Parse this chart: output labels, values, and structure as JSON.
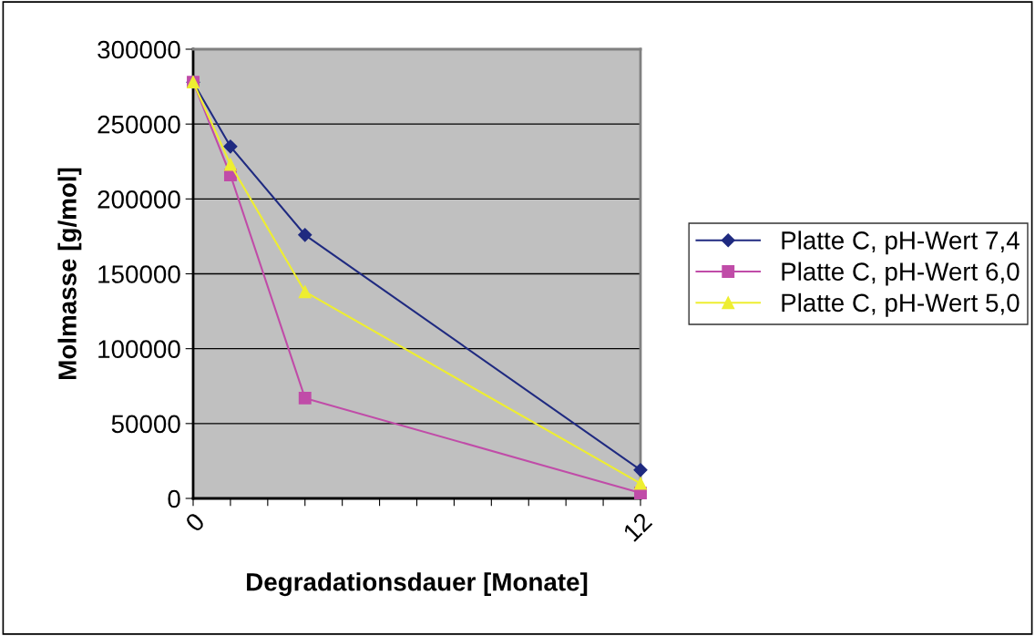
{
  "chart_data": {
    "type": "line",
    "xlabel": "Degradationsdauer [Monate]",
    "ylabel": "Molmasse [g/mol]",
    "x": [
      0,
      1,
      3,
      12
    ],
    "series": [
      {
        "name": "Platte C, pH-Wert 7,4",
        "color": "#1f2a80",
        "marker": "diamond",
        "values": [
          278000,
          235000,
          176000,
          19000
        ]
      },
      {
        "name": "Platte C, pH-Wert 6,0",
        "color": "#c04ca8",
        "marker": "square",
        "values": [
          278000,
          216000,
          67000,
          3600
        ]
      },
      {
        "name": "Platte C, pH-Wert 5,0",
        "color": "#eeee30",
        "marker": "triangle",
        "values": [
          278000,
          223000,
          138000,
          10000
        ]
      }
    ],
    "xlim": [
      0,
      12
    ],
    "xticks": [
      0,
      {
        "value": 1,
        "label": null
      },
      {
        "value": 2,
        "label": null
      },
      {
        "value": 3,
        "label": null
      },
      {
        "value": 4,
        "label": null
      },
      {
        "value": 5,
        "label": null
      },
      {
        "value": 6,
        "label": null
      },
      {
        "value": 7,
        "label": null
      },
      {
        "value": 8,
        "label": null
      },
      {
        "value": 9,
        "label": null
      },
      {
        "value": 10,
        "label": null
      },
      {
        "value": 11,
        "label": null
      },
      12
    ],
    "ylim": [
      0,
      300000
    ],
    "yticks": [
      0,
      50000,
      100000,
      150000,
      200000,
      250000,
      300000
    ],
    "grid": "y",
    "legend": "right",
    "line_style": "solid"
  }
}
